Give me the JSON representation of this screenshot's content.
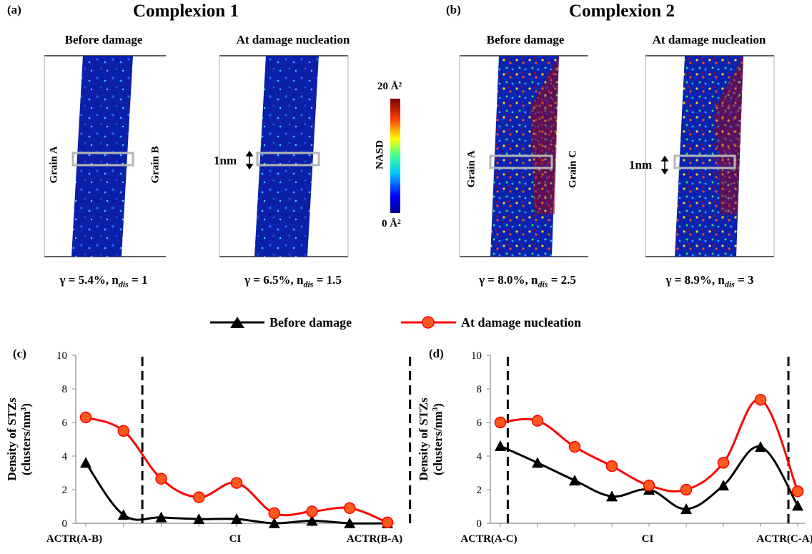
{
  "panels_top": {
    "label_a": "(a)",
    "label_b": "(b)",
    "title_1": "Complexion 1",
    "title_2": "Complexion 2",
    "sub_before": "Before damage",
    "sub_nucleation": "At damage nucleation",
    "grain_a": "Grain A",
    "grain_b": "Grain B",
    "grain_c": "Grain C",
    "scale_1nm": "1nm",
    "gamma_a1": "γ = 5.4%, n",
    "gamma_a1_val": " = 1",
    "gamma_a2": "γ = 6.5%, n",
    "gamma_a2_val": " = 1.5",
    "gamma_b1": "γ = 8.0%, n",
    "gamma_b1_val": " = 2.5",
    "gamma_b2": "γ = 8.9%, n",
    "gamma_b2_val": " = 3",
    "dis_sub": "dis",
    "colorbar_max": "20 Å²",
    "colorbar_min": "0 Å²",
    "colorbar_label": "NASD"
  },
  "legend": {
    "before": "Before damage",
    "nucleation": "At damage nucleation",
    "before_color": "#000000",
    "nucleation_color": "#ff0000",
    "nucleation_fill": "#ff5a1e"
  },
  "chart_data": [
    {
      "type": "line",
      "panel": "(c)",
      "ylabel_line1": "Density of STZs",
      "ylabel_line2": "(clusters/nm",
      "ylabel_sup": "3",
      "ylabel_close": ")",
      "ylim": [
        0,
        10
      ],
      "yticks": [
        0,
        2,
        4,
        6,
        8,
        10
      ],
      "x_labels": [
        "ACTR(A-B)",
        "CI",
        "ACTR(B-A)"
      ],
      "series": [
        {
          "values": [
            3.6,
            0.5,
            0.35,
            0.25,
            0.25,
            0.0,
            0.15,
            0.0,
            0.0
          ]
        },
        {
          "values": [
            6.3,
            5.5,
            2.65,
            1.55,
            2.4,
            0.6,
            0.7,
            0.9,
            0.05
          ]
        }
      ],
      "vlines_index": [
        1.5,
        8.6
      ]
    },
    {
      "type": "line",
      "panel": "(d)",
      "ylabel_line1": "Density of STZs",
      "ylabel_line2": "(clusters/nm",
      "ylabel_sup": "3",
      "ylabel_close": ")",
      "ylim": [
        0,
        10
      ],
      "yticks": [
        0,
        2,
        4,
        6,
        8,
        10
      ],
      "x_labels": [
        "ACTR(A-C)",
        "CI",
        "ACTR(C-A)"
      ],
      "series": [
        {
          "values": [
            4.6,
            3.6,
            2.55,
            1.6,
            2.0,
            0.85,
            2.25,
            4.55,
            1.05
          ]
        },
        {
          "values": [
            6.0,
            6.1,
            4.55,
            3.4,
            2.25,
            2.0,
            3.6,
            7.35,
            1.9
          ]
        }
      ],
      "vlines_index": [
        0.2,
        7.75
      ]
    }
  ]
}
